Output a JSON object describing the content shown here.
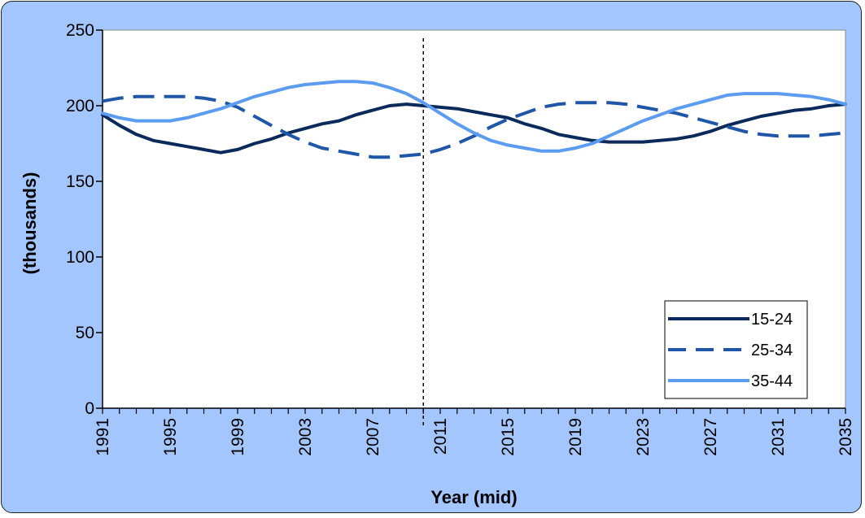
{
  "chart_data": {
    "type": "line",
    "title": "",
    "xlabel": "Year (mid)",
    "ylabel": "(thousands)",
    "xlim": [
      1991,
      2035
    ],
    "ylim": [
      0,
      250
    ],
    "yticks": [
      0,
      50,
      100,
      150,
      200,
      250
    ],
    "xtick_labels": [
      "1991",
      "1995",
      "1999",
      "2003",
      "2007",
      "2011",
      "2015",
      "2019",
      "2023",
      "2027",
      "2031",
      "2035"
    ],
    "grid": false,
    "legend_position": "bottom-right",
    "vertical_marker": 2010,
    "x": [
      1991,
      1992,
      1993,
      1994,
      1995,
      1996,
      1997,
      1998,
      1999,
      2000,
      2001,
      2002,
      2003,
      2004,
      2005,
      2006,
      2007,
      2008,
      2009,
      2010,
      2011,
      2012,
      2013,
      2014,
      2015,
      2016,
      2017,
      2018,
      2019,
      2020,
      2021,
      2022,
      2023,
      2024,
      2025,
      2026,
      2027,
      2028,
      2029,
      2030,
      2031,
      2032,
      2033,
      2034,
      2035
    ],
    "series": [
      {
        "name": "15-24",
        "color": "#0b2a5c",
        "dash": "solid",
        "values": [
          194,
          187,
          181,
          177,
          175,
          173,
          171,
          169,
          171,
          175,
          178,
          182,
          185,
          188,
          190,
          194,
          197,
          200,
          201,
          200,
          199,
          198,
          196,
          194,
          192,
          188,
          185,
          181,
          179,
          177,
          176,
          176,
          176,
          177,
          178,
          180,
          183,
          187,
          190,
          193,
          195,
          197,
          198,
          200,
          201
        ]
      },
      {
        "name": "25-34",
        "color": "#1f56a8",
        "dash": "dashed",
        "values": [
          203,
          205,
          206,
          206,
          206,
          206,
          205,
          203,
          199,
          193,
          187,
          181,
          176,
          172,
          170,
          168,
          166,
          166,
          167,
          168,
          171,
          175,
          180,
          186,
          191,
          195,
          199,
          201,
          202,
          202,
          202,
          201,
          199,
          197,
          195,
          192,
          189,
          186,
          183,
          181,
          180,
          180,
          180,
          181,
          182
        ]
      },
      {
        "name": "35-44",
        "color": "#5b9bf0",
        "dash": "solid",
        "values": [
          195,
          192,
          190,
          190,
          190,
          192,
          195,
          198,
          202,
          206,
          209,
          212,
          214,
          215,
          216,
          216,
          215,
          212,
          208,
          202,
          195,
          188,
          182,
          177,
          174,
          172,
          170,
          170,
          172,
          175,
          180,
          185,
          190,
          194,
          198,
          201,
          204,
          207,
          208,
          208,
          208,
          207,
          206,
          204,
          201
        ]
      }
    ]
  }
}
